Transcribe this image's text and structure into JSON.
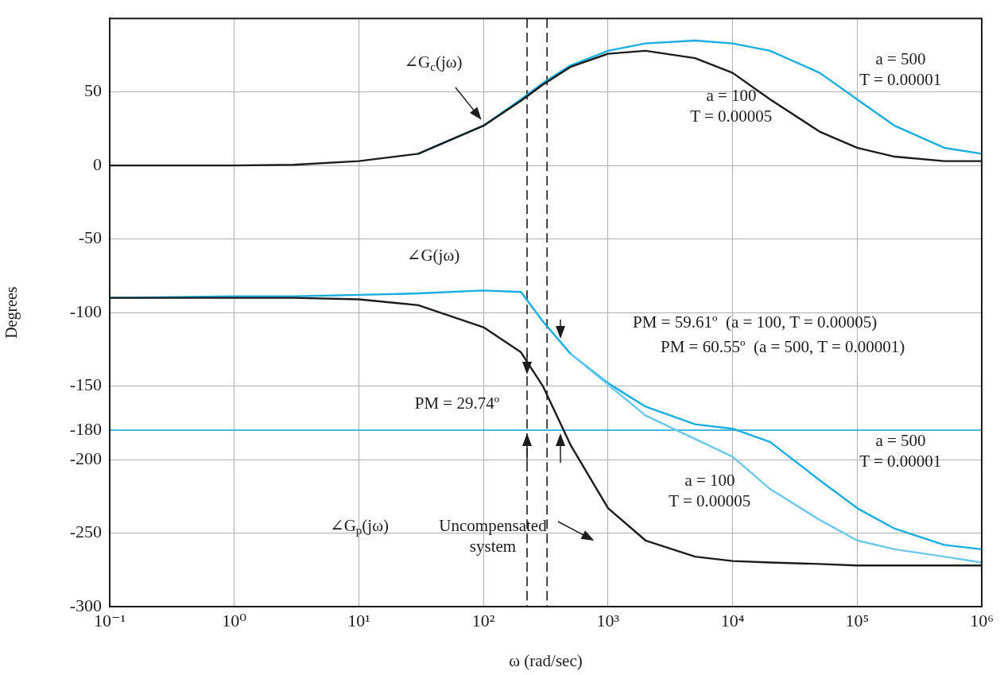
{
  "chart_data": {
    "type": "line",
    "xlabel": "ω (rad/sec)",
    "ylabel": "Degrees",
    "log": "x",
    "x": [
      0.1,
      1,
      3,
      10,
      30,
      100,
      200,
      300,
      500,
      1000,
      2000,
      5000,
      10000,
      20000,
      50000,
      100000,
      200000,
      500000,
      1000000
    ],
    "xlim": [
      0.1,
      1000000
    ],
    "xticks": [
      {
        "value": 0.1,
        "label": "10⁻¹"
      },
      {
        "value": 1,
        "label": "10⁰"
      },
      {
        "value": 10,
        "label": "10¹"
      },
      {
        "value": 100,
        "label": "10²"
      },
      {
        "value": 1000,
        "label": "10³"
      },
      {
        "value": 10000,
        "label": "10⁴"
      },
      {
        "value": 100000,
        "label": "10⁵"
      },
      {
        "value": 1000000,
        "label": "10⁶"
      }
    ],
    "ylim": [
      -300,
      100
    ],
    "yticks": [
      50,
      0,
      -50,
      -100,
      -150,
      -180,
      -200,
      -250,
      -300
    ],
    "grid": true,
    "line_style": "solid",
    "series": [
      {
        "color": "#1c1c1c",
        "values": [
          0,
          0,
          0.5,
          3,
          8,
          27,
          44,
          55,
          67,
          76,
          78,
          73,
          63,
          45,
          23,
          12,
          6,
          3,
          3
        ]
      },
      {
        "color": "#1aaee0",
        "values": [
          null,
          null,
          null,
          null,
          8,
          27,
          45,
          56,
          68,
          78,
          83,
          85,
          83,
          78,
          63,
          45,
          27,
          12,
          8
        ]
      },
      {
        "color": "#1c1c1c",
        "values": [
          -90,
          -90,
          -90,
          -91,
          -95,
          -110,
          -127,
          -150,
          -190,
          -233,
          -255,
          -266,
          -269,
          -270,
          -271,
          -272,
          -272,
          -272,
          -272
        ]
      },
      {
        "color": "#6cc8ea",
        "values": [
          null,
          null,
          null,
          null,
          null,
          null,
          null,
          null,
          -128,
          -149,
          -170,
          -186,
          -198,
          -220,
          -241,
          -255,
          -261,
          -266,
          -270
        ]
      },
      {
        "color": "#1aaee0",
        "values": [
          -90,
          -89,
          -89,
          -88,
          -87,
          -85,
          -86,
          -106,
          -128,
          -148,
          -164,
          -176,
          -179,
          -188,
          -214,
          -233,
          -247,
          -258,
          -261
        ]
      }
    ],
    "ref_lines": [
      {
        "axis": "y",
        "value": -180,
        "color": "#1aaee0",
        "line_style": "solid"
      },
      {
        "axis": "x",
        "value": 224,
        "color": "#1c1c1c",
        "line_style": "dashed"
      },
      {
        "axis": "x",
        "value": 324,
        "color": "#1c1c1c",
        "line_style": "dashed"
      }
    ],
    "annotations": [
      "∠G$_{c}$(jω)",
      "a = 500\nT = 0.00001",
      "a = 100\nT = 0.00005",
      "∠G(jω)",
      "PM = 59.61º  (a = 100, T = 0.00005)",
      "PM = 60.55º  (a = 500, T = 0.00001)",
      "PM = 29.74º",
      "a = 500\nT = 0.00001",
      "a = 100\nT = 0.00005",
      "∠G$_{p}$(jω)",
      "Uncompensated\nsystem"
    ]
  }
}
